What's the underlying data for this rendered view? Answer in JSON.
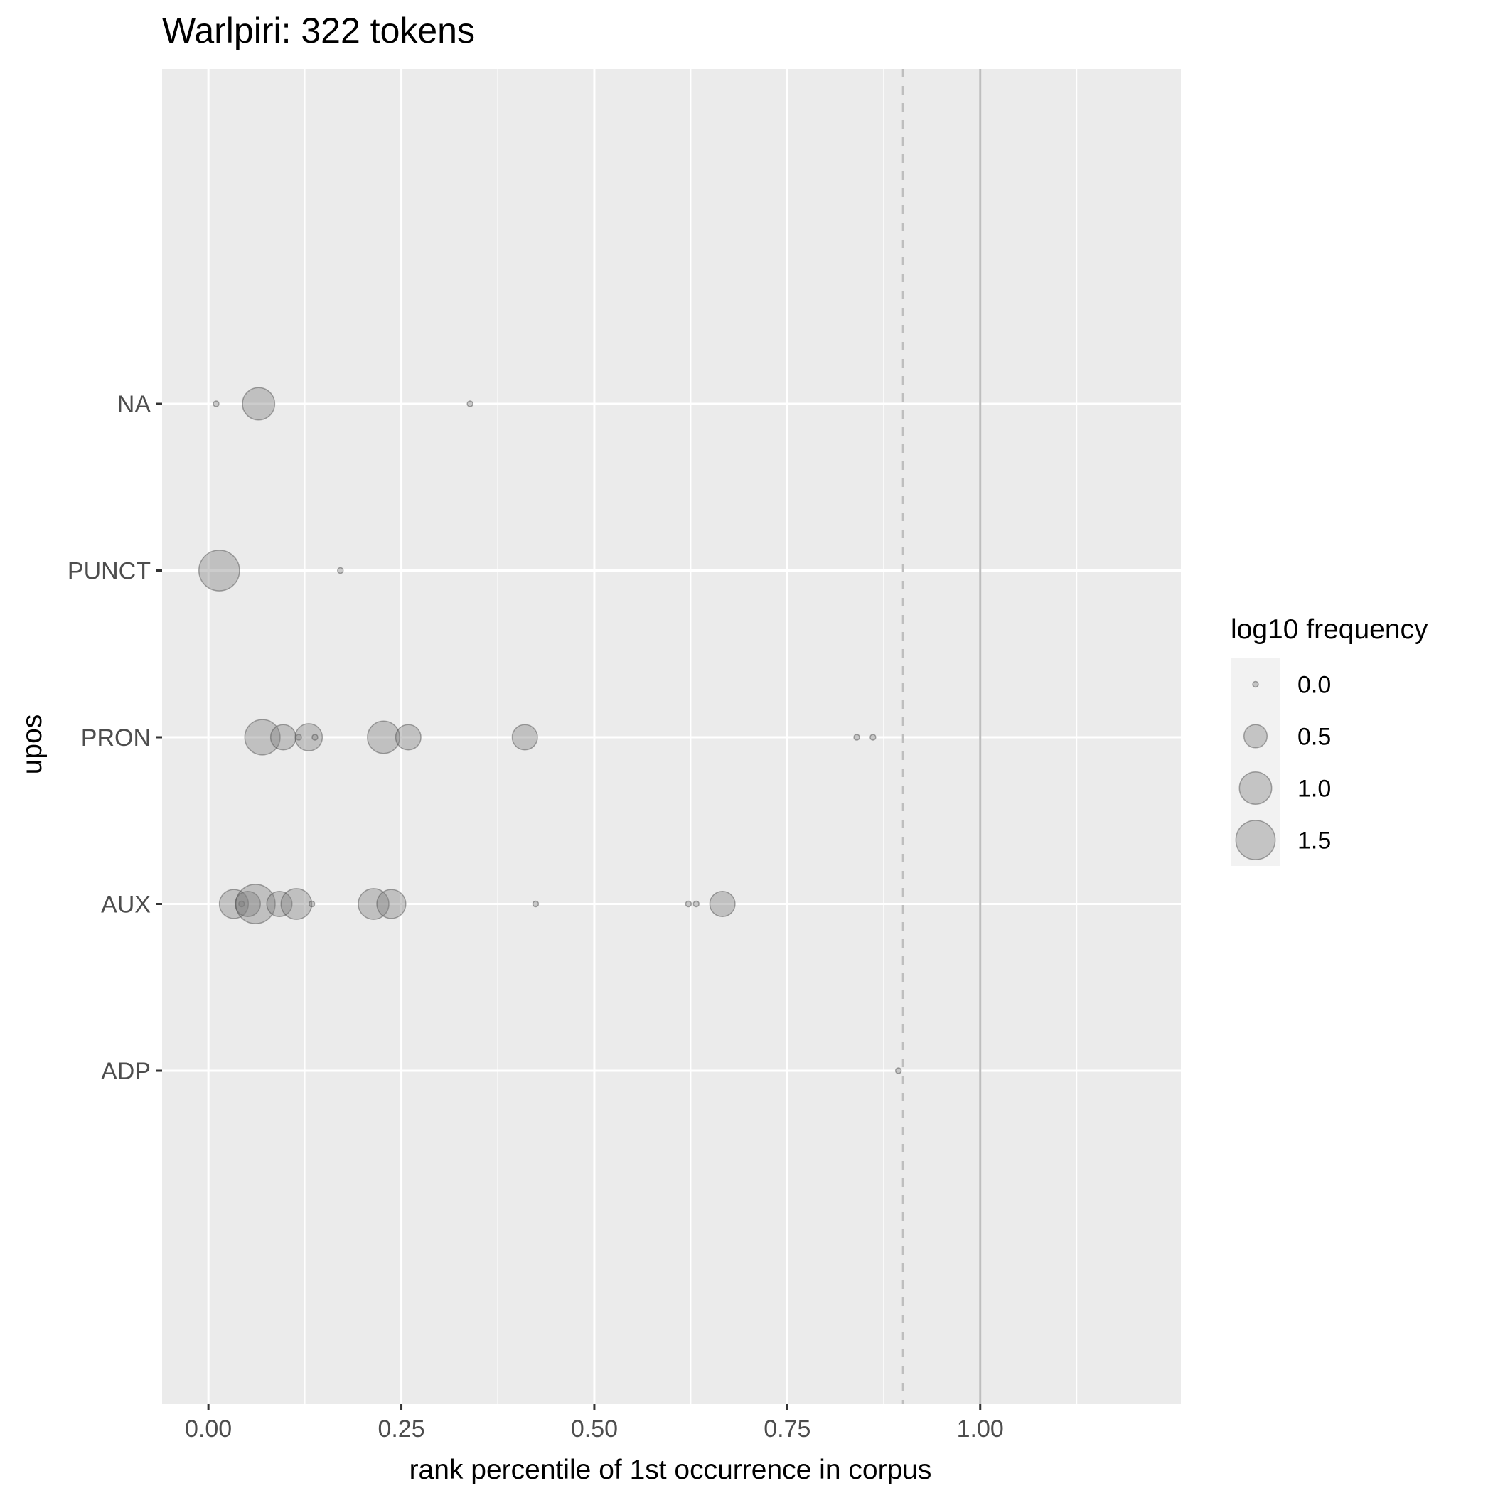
{
  "chart_data": {
    "type": "scatter",
    "title": "Warlpiri: 322 tokens",
    "xlabel": "rank percentile of 1st occurrence in corpus",
    "ylabel": "upos",
    "xlim": [
      -0.06,
      1.26
    ],
    "x_ticks": [
      "0.00",
      "0.25",
      "0.50",
      "0.75",
      "1.00"
    ],
    "x_tick_values": [
      0,
      0.25,
      0.5,
      0.75,
      1.0
    ],
    "categories": [
      "NA",
      "PUNCT",
      "PRON",
      "AUX",
      "ADP"
    ],
    "grid": true,
    "reference_lines": [
      {
        "x": 0.9,
        "style": "dashed"
      },
      {
        "x": 1.0,
        "style": "solid"
      }
    ],
    "legend": {
      "title": "log10 frequency",
      "placement": "right",
      "entries": [
        {
          "label": "0.0",
          "value": 0.0
        },
        {
          "label": "0.5",
          "value": 0.5
        },
        {
          "label": "1.0",
          "value": 1.0
        },
        {
          "label": "1.5",
          "value": 1.5
        }
      ]
    },
    "size_range": [
      0,
      1.65
    ],
    "points": [
      {
        "category": "NA",
        "x": 0.01,
        "size": 0.0
      },
      {
        "category": "NA",
        "x": 0.065,
        "size": 1.0
      },
      {
        "category": "NA",
        "x": 0.339,
        "size": 0.0
      },
      {
        "category": "PUNCT",
        "x": 0.014,
        "size": 1.6
      },
      {
        "category": "PUNCT",
        "x": 0.171,
        "size": 0.0
      },
      {
        "category": "PRON",
        "x": 0.07,
        "size": 1.2
      },
      {
        "category": "PRON",
        "x": 0.097,
        "size": 0.6
      },
      {
        "category": "PRON",
        "x": 0.117,
        "size": 0.0
      },
      {
        "category": "PRON",
        "x": 0.13,
        "size": 0.7
      },
      {
        "category": "PRON",
        "x": 0.138,
        "size": 0.0
      },
      {
        "category": "PRON",
        "x": 0.227,
        "size": 1.0
      },
      {
        "category": "PRON",
        "x": 0.259,
        "size": 0.6
      },
      {
        "category": "PRON",
        "x": 0.41,
        "size": 0.6
      },
      {
        "category": "PRON",
        "x": 0.84,
        "size": 0.0
      },
      {
        "category": "PRON",
        "x": 0.861,
        "size": 0.0
      },
      {
        "category": "AUX",
        "x": 0.033,
        "size": 0.8
      },
      {
        "category": "AUX",
        "x": 0.043,
        "size": 0.0
      },
      {
        "category": "AUX",
        "x": 0.051,
        "size": 0.6
      },
      {
        "category": "AUX",
        "x": 0.061,
        "size": 1.5
      },
      {
        "category": "AUX",
        "x": 0.092,
        "size": 0.6
      },
      {
        "category": "AUX",
        "x": 0.114,
        "size": 0.9
      },
      {
        "category": "AUX",
        "x": 0.134,
        "size": 0.0
      },
      {
        "category": "AUX",
        "x": 0.214,
        "size": 0.9
      },
      {
        "category": "AUX",
        "x": 0.237,
        "size": 0.8
      },
      {
        "category": "AUX",
        "x": 0.424,
        "size": 0.0
      },
      {
        "category": "AUX",
        "x": 0.622,
        "size": 0.0
      },
      {
        "category": "AUX",
        "x": 0.632,
        "size": 0.0
      },
      {
        "category": "AUX",
        "x": 0.666,
        "size": 0.6
      },
      {
        "category": "ADP",
        "x": 0.894,
        "size": 0.0
      }
    ]
  }
}
